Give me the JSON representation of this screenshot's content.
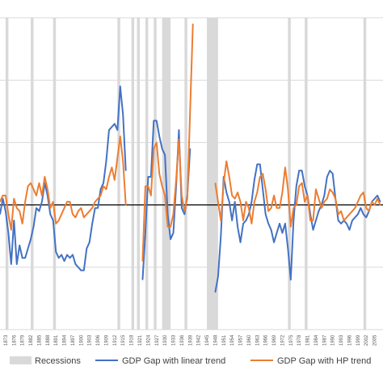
{
  "chart_data": {
    "type": "line",
    "x_range": [
      1871,
      2008
    ],
    "x_ticks": [
      1873,
      1876,
      1879,
      1882,
      1885,
      1888,
      1891,
      1894,
      1897,
      1900,
      1903,
      1906,
      1909,
      1912,
      1915,
      1918,
      1921,
      1924,
      1927,
      1930,
      1933,
      1936,
      1939,
      1942,
      1945,
      1948,
      1951,
      1954,
      1957,
      1960,
      1963,
      1966,
      1969,
      1972,
      1975,
      1978,
      1981,
      1984,
      1987,
      1990,
      1993,
      1996,
      1999,
      2002,
      2005
    ],
    "y_range": [
      -0.4,
      0.6
    ],
    "y_gridlines": [
      -0.4,
      -0.2,
      0,
      0.2,
      0.4,
      0.6
    ],
    "zero_line": 0,
    "legend_position": "bottom",
    "recessions": [
      [
        1873,
        1874
      ],
      [
        1882,
        1883
      ],
      [
        1890,
        1891
      ],
      [
        1913,
        1914
      ],
      [
        1918,
        1919
      ],
      [
        1920,
        1921
      ],
      [
        1923,
        1924
      ],
      [
        1926,
        1927
      ],
      [
        1929,
        1932
      ],
      [
        1937,
        1938
      ],
      [
        1945,
        1949
      ],
      [
        1974,
        1975
      ],
      [
        1980,
        1981
      ],
      [
        2001,
        2002
      ]
    ],
    "series": [
      {
        "name": "GDP Gap with linear trend",
        "color": "#4472c4",
        "points": [
          [
            1871,
            -0.03
          ],
          [
            1872,
            0.02
          ],
          [
            1873,
            -0.02
          ],
          [
            1874,
            -0.09
          ],
          [
            1875,
            -0.19
          ],
          [
            1876,
            -0.05
          ],
          [
            1877,
            -0.19
          ],
          [
            1878,
            -0.13
          ],
          [
            1879,
            -0.17
          ],
          [
            1880,
            -0.17
          ],
          [
            1881,
            -0.14
          ],
          [
            1882,
            -0.11
          ],
          [
            1883,
            -0.07
          ],
          [
            1884,
            -0.01
          ],
          [
            1885,
            -0.02
          ],
          [
            1886,
            0.01
          ],
          [
            1887,
            0.07
          ],
          [
            1888,
            0.03
          ],
          [
            1889,
            -0.03
          ],
          [
            1890,
            -0.05
          ],
          [
            1891,
            -0.15
          ],
          [
            1892,
            -0.17
          ],
          [
            1893,
            -0.16
          ],
          [
            1894,
            -0.18
          ],
          [
            1895,
            -0.16
          ],
          [
            1896,
            -0.17
          ],
          [
            1897,
            -0.16
          ],
          [
            1898,
            -0.19
          ],
          [
            1899,
            -0.2
          ],
          [
            1900,
            -0.21
          ],
          [
            1901,
            -0.21
          ],
          [
            1902,
            -0.14
          ],
          [
            1903,
            -0.12
          ],
          [
            1904,
            -0.06
          ],
          [
            1905,
            -0.01
          ],
          [
            1906,
            -0.01
          ],
          [
            1907,
            0.05
          ],
          [
            1908,
            0.07
          ],
          [
            1909,
            0.14
          ],
          [
            1910,
            0.24
          ],
          [
            1911,
            0.25
          ],
          [
            1912,
            0.26
          ],
          [
            1913,
            0.24
          ],
          [
            1914,
            0.38
          ],
          [
            1915,
            0.29
          ],
          [
            1916,
            0.11
          ],
          [
            1922,
            -0.24
          ],
          [
            1923,
            -0.09
          ],
          [
            1924,
            0.09
          ],
          [
            1925,
            0.09
          ],
          [
            1926,
            0.27
          ],
          [
            1927,
            0.27
          ],
          [
            1928,
            0.22
          ],
          [
            1929,
            0.18
          ],
          [
            1930,
            0.16
          ],
          [
            1931,
            -0.03
          ],
          [
            1932,
            -0.11
          ],
          [
            1933,
            -0.09
          ],
          [
            1934,
            0.06
          ],
          [
            1935,
            0.24
          ],
          [
            1936,
            -0.01
          ],
          [
            1937,
            -0.03
          ],
          [
            1938,
            0.03
          ],
          [
            1939,
            0.18
          ],
          [
            1948,
            -0.28
          ],
          [
            1949,
            -0.23
          ],
          [
            1950,
            -0.1
          ],
          [
            1951,
            0.09
          ],
          [
            1952,
            0.04
          ],
          [
            1953,
            0.01
          ],
          [
            1954,
            -0.05
          ],
          [
            1955,
            0.01
          ],
          [
            1956,
            -0.07
          ],
          [
            1957,
            -0.12
          ],
          [
            1958,
            -0.06
          ],
          [
            1959,
            -0.05
          ],
          [
            1960,
            -0.03
          ],
          [
            1961,
            0.01
          ],
          [
            1962,
            0.08
          ],
          [
            1963,
            0.13
          ],
          [
            1964,
            0.13
          ],
          [
            1965,
            0.05
          ],
          [
            1966,
            -0.03
          ],
          [
            1967,
            -0.06
          ],
          [
            1968,
            -0.08
          ],
          [
            1969,
            -0.12
          ],
          [
            1970,
            -0.09
          ],
          [
            1971,
            -0.06
          ],
          [
            1972,
            -0.09
          ],
          [
            1973,
            -0.06
          ],
          [
            1974,
            -0.14
          ],
          [
            1975,
            -0.24
          ],
          [
            1976,
            -0.05
          ],
          [
            1977,
            0.06
          ],
          [
            1978,
            0.11
          ],
          [
            1979,
            0.11
          ],
          [
            1980,
            0.06
          ],
          [
            1981,
            0.03
          ],
          [
            1982,
            -0.03
          ],
          [
            1983,
            -0.08
          ],
          [
            1984,
            -0.05
          ],
          [
            1985,
            -0.02
          ],
          [
            1986,
            0
          ],
          [
            1987,
            0.03
          ],
          [
            1988,
            0.09
          ],
          [
            1989,
            0.11
          ],
          [
            1990,
            0.1
          ],
          [
            1991,
            0.02
          ],
          [
            1992,
            -0.05
          ],
          [
            1993,
            -0.06
          ],
          [
            1994,
            -0.05
          ],
          [
            1995,
            -0.06
          ],
          [
            1996,
            -0.08
          ],
          [
            1997,
            -0.05
          ],
          [
            1998,
            -0.04
          ],
          [
            1999,
            -0.03
          ],
          [
            2000,
            -0.01
          ],
          [
            2001,
            -0.03
          ],
          [
            2002,
            -0.04
          ],
          [
            2003,
            -0.02
          ],
          [
            2004,
            0.01
          ],
          [
            2005,
            0.02
          ],
          [
            2006,
            0.03
          ],
          [
            2007,
            0.01
          ]
        ]
      },
      {
        "name": "GDP Gap with HP trend",
        "color": "#ed7d31",
        "points": [
          [
            1871,
            0.01
          ],
          [
            1872,
            0.03
          ],
          [
            1873,
            0.03
          ],
          [
            1874,
            -0.03
          ],
          [
            1875,
            -0.08
          ],
          [
            1876,
            0.02
          ],
          [
            1877,
            -0.01
          ],
          [
            1878,
            -0.02
          ],
          [
            1879,
            -0.06
          ],
          [
            1880,
            0.01
          ],
          [
            1881,
            0.06
          ],
          [
            1882,
            0.07
          ],
          [
            1883,
            0.05
          ],
          [
            1884,
            0.03
          ],
          [
            1885,
            0.07
          ],
          [
            1886,
            0.03
          ],
          [
            1887,
            0.09
          ],
          [
            1888,
            0.05
          ],
          [
            1889,
            -0.01
          ],
          [
            1890,
            0.01
          ],
          [
            1891,
            -0.06
          ],
          [
            1892,
            -0.05
          ],
          [
            1893,
            -0.03
          ],
          [
            1894,
            -0.01
          ],
          [
            1895,
            0.01
          ],
          [
            1896,
            0.01
          ],
          [
            1897,
            -0.03
          ],
          [
            1898,
            -0.04
          ],
          [
            1899,
            -0.02
          ],
          [
            1900,
            -0.01
          ],
          [
            1901,
            -0.04
          ],
          [
            1902,
            -0.03
          ],
          [
            1903,
            -0.02
          ],
          [
            1904,
            -0.01
          ],
          [
            1905,
            0.01
          ],
          [
            1906,
            0.02
          ],
          [
            1907,
            0.03
          ],
          [
            1908,
            0.06
          ],
          [
            1909,
            0.05
          ],
          [
            1910,
            0.09
          ],
          [
            1911,
            0.12
          ],
          [
            1912,
            0.08
          ],
          [
            1913,
            0.15
          ],
          [
            1914,
            0.22
          ],
          [
            1915,
            0.14
          ],
          [
            1916,
            0
          ],
          [
            1922,
            -0.18
          ],
          [
            1923,
            0.06
          ],
          [
            1924,
            0.06
          ],
          [
            1925,
            0.03
          ],
          [
            1926,
            0.18
          ],
          [
            1927,
            0.2
          ],
          [
            1928,
            0.1
          ],
          [
            1929,
            0.06
          ],
          [
            1930,
            0.03
          ],
          [
            1931,
            -0.07
          ],
          [
            1932,
            -0.07
          ],
          [
            1933,
            -0.03
          ],
          [
            1934,
            0.08
          ],
          [
            1935,
            0.21
          ],
          [
            1936,
            0.03
          ],
          [
            1937,
            -0.02
          ],
          [
            1938,
            0.02
          ],
          [
            1939,
            0.3
          ],
          [
            1940,
            0.58
          ],
          [
            1948,
            0.07
          ],
          [
            1949,
            0.01
          ],
          [
            1950,
            -0.05
          ],
          [
            1951,
            0.07
          ],
          [
            1952,
            0.14
          ],
          [
            1953,
            0.09
          ],
          [
            1954,
            0.03
          ],
          [
            1955,
            0.02
          ],
          [
            1956,
            0.04
          ],
          [
            1957,
            0.01
          ],
          [
            1958,
            -0.05
          ],
          [
            1959,
            0.01
          ],
          [
            1960,
            -0.01
          ],
          [
            1961,
            -0.06
          ],
          [
            1962,
            0.01
          ],
          [
            1963,
            0.04
          ],
          [
            1964,
            0.09
          ],
          [
            1965,
            0.1
          ],
          [
            1966,
            0.05
          ],
          [
            1967,
            -0.02
          ],
          [
            1968,
            -0.01
          ],
          [
            1969,
            0.03
          ],
          [
            1970,
            -0.01
          ],
          [
            1971,
            -0.01
          ],
          [
            1972,
            0.04
          ],
          [
            1973,
            0.12
          ],
          [
            1974,
            0.05
          ],
          [
            1975,
            -0.07
          ],
          [
            1976,
            -0.01
          ],
          [
            1977,
            0
          ],
          [
            1978,
            0.06
          ],
          [
            1979,
            0.07
          ],
          [
            1980,
            0.01
          ],
          [
            1981,
            0.03
          ],
          [
            1982,
            -0.05
          ],
          [
            1983,
            -0.05
          ],
          [
            1984,
            0.05
          ],
          [
            1985,
            0.02
          ],
          [
            1986,
            -0.01
          ],
          [
            1987,
            0.01
          ],
          [
            1988,
            0.02
          ],
          [
            1989,
            0.05
          ],
          [
            1990,
            0.04
          ],
          [
            1991,
            0.02
          ],
          [
            1992,
            -0.03
          ],
          [
            1993,
            -0.02
          ],
          [
            1994,
            -0.05
          ],
          [
            1995,
            -0.04
          ],
          [
            1996,
            -0.03
          ],
          [
            1997,
            -0.02
          ],
          [
            1998,
            -0.01
          ],
          [
            1999,
            0.01
          ],
          [
            2000,
            0.03
          ],
          [
            2001,
            0.04
          ],
          [
            2002,
            -0.01
          ],
          [
            2003,
            -0.02
          ],
          [
            2004,
            0.01
          ],
          [
            2005,
            0
          ],
          [
            2006,
            0.02
          ],
          [
            2007,
            0
          ]
        ]
      }
    ],
    "legend": {
      "recessions_label": "Recessions",
      "recession_color": "#d9d9d9",
      "zero_line_color": "#000000",
      "grid_color": "#d9d9d9"
    }
  }
}
